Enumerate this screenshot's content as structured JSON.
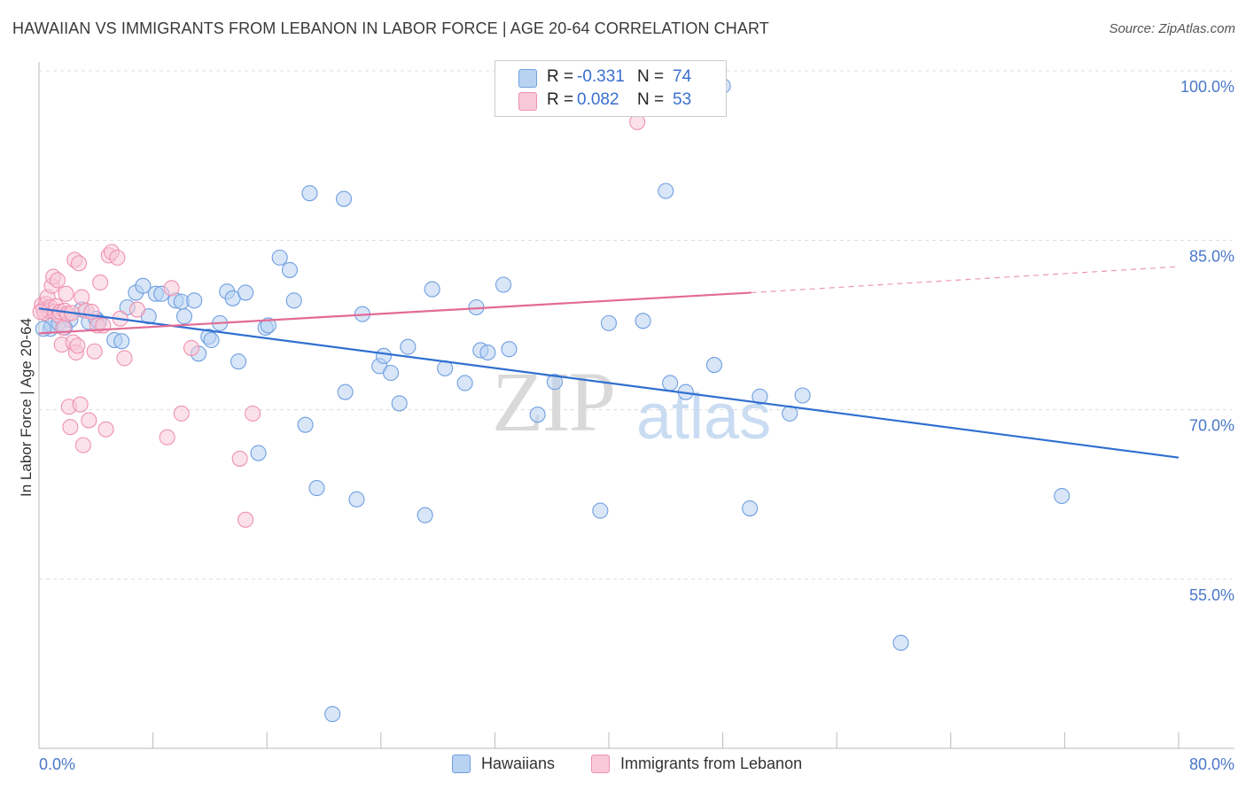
{
  "chart_data": {
    "type": "scatter",
    "title": "HAWAIIAN VS IMMIGRANTS FROM LEBANON IN LABOR FORCE | AGE 20-64 CORRELATION CHART",
    "source": "Source: ZipAtlas.com",
    "ylabel": "In Labor Force | Age 20-64",
    "xlim": [
      0,
      80
    ],
    "ylim": [
      40,
      102
    ],
    "x_tick_labels": [
      "0.0%",
      "80.0%"
    ],
    "y_ticks": [
      {
        "value": 100,
        "label": "100.0%"
      },
      {
        "value": 85,
        "label": "85.0%"
      },
      {
        "value": 70,
        "label": "70.0%"
      },
      {
        "value": 55,
        "label": "55.0%"
      }
    ],
    "legend": {
      "rows": [
        {
          "r_label": "R = ",
          "r_value": "-0.331",
          "n_label": "N = ",
          "n_value": "74",
          "color": "#a9c8ef"
        },
        {
          "r_label": "R = ",
          "r_value": "0.082",
          "n_label": "N = ",
          "n_value": "53",
          "color": "#f5b6cb"
        }
      ]
    },
    "watermark": {
      "zip": "ZIP",
      "atlas": "atlas"
    },
    "series": [
      {
        "name": "Hawaiians",
        "color": "#6f9fe0",
        "fill": "#b8d2f2",
        "line_color": "#2f6fd0",
        "trend": {
          "x0": 0,
          "y0": 80.3,
          "x1": 80,
          "y1": 67.1
        },
        "points": [
          [
            0.8,
            78.5
          ],
          [
            0.9,
            78.8
          ],
          [
            1.4,
            79.0
          ],
          [
            2.2,
            79.3
          ],
          [
            3.0,
            80.2
          ],
          [
            3.5,
            79.1
          ],
          [
            4.0,
            79.4
          ],
          [
            4.2,
            79.1
          ],
          [
            5.3,
            77.5
          ],
          [
            5.8,
            77.4
          ],
          [
            6.2,
            80.4
          ],
          [
            6.8,
            81.7
          ],
          [
            7.3,
            82.3
          ],
          [
            7.7,
            79.6
          ],
          [
            8.2,
            81.6
          ],
          [
            8.6,
            81.6
          ],
          [
            9.6,
            81.0
          ],
          [
            10.0,
            80.9
          ],
          [
            10.2,
            79.6
          ],
          [
            10.9,
            81.0
          ],
          [
            11.2,
            76.3
          ],
          [
            11.9,
            77.8
          ],
          [
            12.1,
            77.5
          ],
          [
            12.7,
            79.0
          ],
          [
            13.2,
            81.8
          ],
          [
            13.6,
            81.2
          ],
          [
            14.0,
            75.6
          ],
          [
            14.5,
            81.7
          ],
          [
            15.4,
            67.5
          ],
          [
            15.9,
            78.6
          ],
          [
            16.1,
            78.8
          ],
          [
            16.9,
            84.8
          ],
          [
            17.6,
            83.7
          ],
          [
            17.9,
            81.0
          ],
          [
            18.7,
            70.0
          ],
          [
            19.0,
            90.5
          ],
          [
            19.5,
            64.4
          ],
          [
            20.6,
            44.4
          ],
          [
            21.4,
            90.0
          ],
          [
            21.5,
            72.9
          ],
          [
            22.3,
            63.4
          ],
          [
            22.7,
            79.8
          ],
          [
            23.9,
            75.2
          ],
          [
            24.2,
            76.1
          ],
          [
            24.7,
            74.6
          ],
          [
            25.3,
            71.9
          ],
          [
            25.9,
            76.9
          ],
          [
            27.1,
            62.0
          ],
          [
            27.6,
            82.0
          ],
          [
            28.5,
            75.0
          ],
          [
            29.9,
            73.7
          ],
          [
            30.7,
            80.4
          ],
          [
            31.0,
            76.6
          ],
          [
            31.5,
            76.4
          ],
          [
            32.6,
            82.4
          ],
          [
            33.0,
            76.7
          ],
          [
            35.0,
            70.9
          ],
          [
            36.2,
            73.8
          ],
          [
            39.4,
            62.4
          ],
          [
            40.0,
            79.0
          ],
          [
            42.4,
            79.2
          ],
          [
            44.0,
            90.7
          ],
          [
            44.3,
            73.7
          ],
          [
            45.4,
            72.9
          ],
          [
            47.4,
            75.3
          ],
          [
            48.0,
            100.0
          ],
          [
            49.9,
            62.6
          ],
          [
            50.6,
            72.5
          ],
          [
            52.7,
            71.0
          ],
          [
            53.6,
            72.6
          ],
          [
            60.5,
            50.7
          ],
          [
            71.8,
            63.7
          ],
          [
            0.3,
            78.5
          ],
          [
            1.8,
            78.6
          ]
        ]
      },
      {
        "name": "Immigrants from Lebanon",
        "color": "#ef92b0",
        "fill": "#f8c8d8",
        "line_color": "#e36b95",
        "trend": {
          "x0": 0,
          "y0": 78.1,
          "x1": 50,
          "y1": 81.7
        },
        "trend_dashed": {
          "x0": 50,
          "y0": 81.7,
          "x1": 80,
          "y1": 84.0
        },
        "points": [
          [
            0.2,
            80.6
          ],
          [
            0.3,
            80.2
          ],
          [
            0.4,
            79.9
          ],
          [
            0.5,
            80.7
          ],
          [
            0.6,
            81.3
          ],
          [
            0.7,
            80.1
          ],
          [
            0.8,
            80.4
          ],
          [
            0.9,
            82.3
          ],
          [
            1.0,
            83.1
          ],
          [
            1.1,
            80.0
          ],
          [
            1.2,
            80.5
          ],
          [
            1.3,
            82.8
          ],
          [
            1.4,
            79.7
          ],
          [
            1.5,
            80.0
          ],
          [
            1.6,
            77.1
          ],
          [
            1.7,
            78.6
          ],
          [
            1.8,
            80.1
          ],
          [
            1.9,
            81.6
          ],
          [
            2.0,
            79.8
          ],
          [
            2.1,
            71.6
          ],
          [
            2.2,
            69.8
          ],
          [
            2.3,
            79.9
          ],
          [
            2.4,
            77.3
          ],
          [
            2.5,
            84.6
          ],
          [
            2.6,
            76.4
          ],
          [
            2.7,
            77.0
          ],
          [
            2.8,
            84.3
          ],
          [
            2.9,
            71.8
          ],
          [
            3.0,
            81.3
          ],
          [
            3.1,
            68.2
          ],
          [
            3.3,
            80.1
          ],
          [
            3.5,
            70.4
          ],
          [
            3.7,
            80.0
          ],
          [
            3.9,
            76.5
          ],
          [
            4.1,
            78.8
          ],
          [
            4.3,
            82.6
          ],
          [
            4.5,
            78.8
          ],
          [
            4.7,
            69.6
          ],
          [
            4.9,
            85.0
          ],
          [
            5.1,
            85.3
          ],
          [
            5.5,
            84.8
          ],
          [
            5.7,
            79.4
          ],
          [
            6.0,
            75.9
          ],
          [
            6.9,
            80.2
          ],
          [
            9.0,
            68.9
          ],
          [
            9.3,
            82.1
          ],
          [
            10.0,
            71.0
          ],
          [
            10.7,
            76.8
          ],
          [
            14.1,
            67.0
          ],
          [
            14.5,
            61.6
          ],
          [
            15.0,
            71.0
          ],
          [
            42.0,
            96.8
          ],
          [
            0.1,
            80.0
          ]
        ]
      }
    ]
  }
}
